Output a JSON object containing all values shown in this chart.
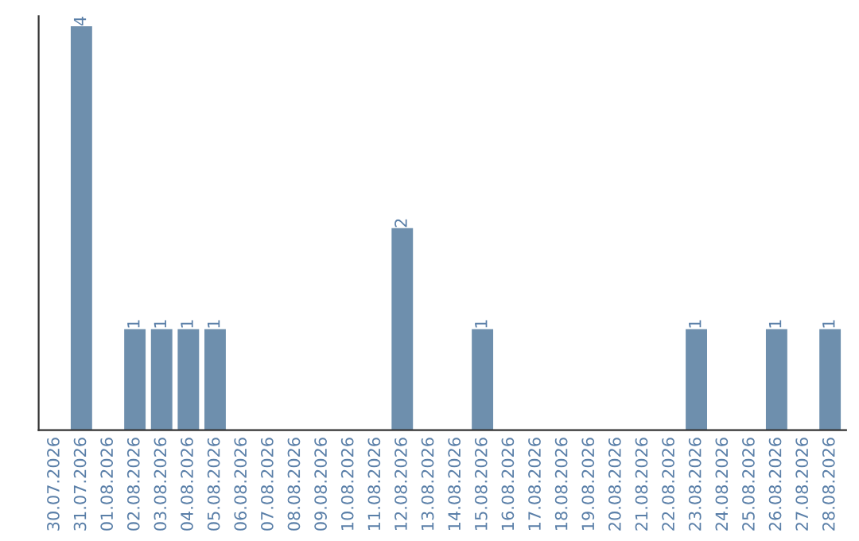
{
  "chart_data": {
    "type": "bar",
    "categories": [
      "30.07.2026",
      "31.07.2026",
      "01.08.2026",
      "02.08.2026",
      "03.08.2026",
      "04.08.2026",
      "05.08.2026",
      "06.08.2026",
      "07.08.2026",
      "08.08.2026",
      "09.08.2026",
      "10.08.2026",
      "11.08.2026",
      "12.08.2026",
      "13.08.2026",
      "14.08.2026",
      "15.08.2026",
      "16.08.2026",
      "17.08.2026",
      "18.08.2026",
      "19.08.2026",
      "20.08.2026",
      "21.08.2026",
      "22.08.2026",
      "23.08.2026",
      "24.08.2026",
      "25.08.2026",
      "26.08.2026",
      "27.08.2026",
      "28.08.2026"
    ],
    "values": [
      0,
      4,
      0,
      1,
      1,
      1,
      1,
      0,
      0,
      0,
      0,
      0,
      0,
      2,
      0,
      0,
      1,
      0,
      0,
      0,
      0,
      0,
      0,
      0,
      1,
      0,
      0,
      1,
      0,
      1
    ],
    "value_labels": [
      null,
      "4",
      null,
      "1",
      "1",
      "1",
      "1",
      null,
      null,
      null,
      null,
      null,
      null,
      "2",
      null,
      null,
      "1",
      null,
      null,
      null,
      null,
      null,
      null,
      null,
      "1",
      null,
      null,
      "1",
      null,
      "1"
    ],
    "color": "#6e8fad",
    "ylim": [
      0,
      4.1
    ],
    "tick_labels": "x",
    "grid": false,
    "legend": false
  }
}
